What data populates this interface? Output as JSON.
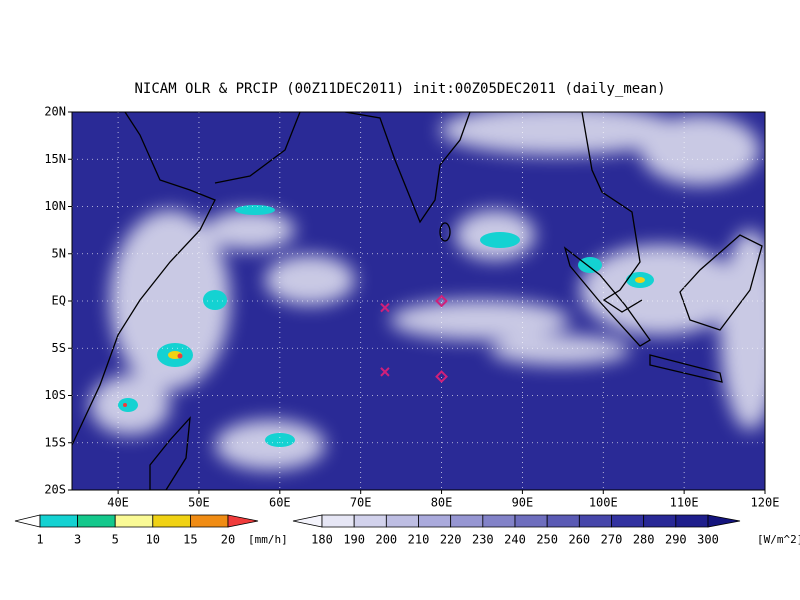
{
  "title": "NICAM OLR & PRCIP (00Z11DEC2011) init:00Z05DEC2011 (daily_mean)",
  "map": {
    "xlim": [
      34.3,
      120
    ],
    "ylim": [
      -20,
      20
    ],
    "xticks": [
      {
        "value": 40,
        "label": "40E"
      },
      {
        "value": 50,
        "label": "50E"
      },
      {
        "value": 60,
        "label": "60E"
      },
      {
        "value": 70,
        "label": "70E"
      },
      {
        "value": 80,
        "label": "80E"
      },
      {
        "value": 90,
        "label": "90E"
      },
      {
        "value": 100,
        "label": "100E"
      },
      {
        "value": 110,
        "label": "110E"
      },
      {
        "value": 120,
        "label": "120E"
      }
    ],
    "yticks": [
      {
        "value": 20,
        "label": "20N"
      },
      {
        "value": 15,
        "label": "15N"
      },
      {
        "value": 10,
        "label": "10N"
      },
      {
        "value": 5,
        "label": "5N"
      },
      {
        "value": 0,
        "label": "EQ"
      },
      {
        "value": -5,
        "label": "5S"
      },
      {
        "value": -10,
        "label": "10S"
      },
      {
        "value": -15,
        "label": "15S"
      },
      {
        "value": -20,
        "label": "20S"
      }
    ],
    "grid": true,
    "markers": [
      {
        "lon": 73,
        "lat": -0.7,
        "symbol": "x",
        "color": "#d0207a"
      },
      {
        "lon": 73,
        "lat": -7.5,
        "symbol": "x",
        "color": "#d0207a"
      },
      {
        "lon": 80,
        "lat": 0,
        "symbol": "diamond",
        "color": "#d0207a"
      },
      {
        "lon": 80,
        "lat": -8,
        "symbol": "diamond",
        "color": "#d0207a"
      }
    ]
  },
  "colorbars": [
    {
      "labels": [
        1,
        3,
        5,
        10,
        15,
        20
      ],
      "unit": "[mm/h]",
      "colors": [
        "#ffffff",
        "#14d2d2",
        "#14c88c",
        "#fafa96",
        "#f0d214",
        "#f08c14",
        "#f03c3c"
      ]
    },
    {
      "labels": [
        180,
        190,
        200,
        210,
        220,
        230,
        240,
        250,
        260,
        270,
        280,
        290,
        300
      ],
      "unit": "[W/m^2]",
      "colors": [
        "#f4f4fc",
        "#e6e6f5",
        "#d2d2ec",
        "#bebee3",
        "#aaaadc",
        "#9696d2",
        "#8282c8",
        "#6e6ebe",
        "#5a5ab4",
        "#4646aa",
        "#3232a0",
        "#282896",
        "#1e1e8c",
        "#14147d"
      ]
    }
  ]
}
